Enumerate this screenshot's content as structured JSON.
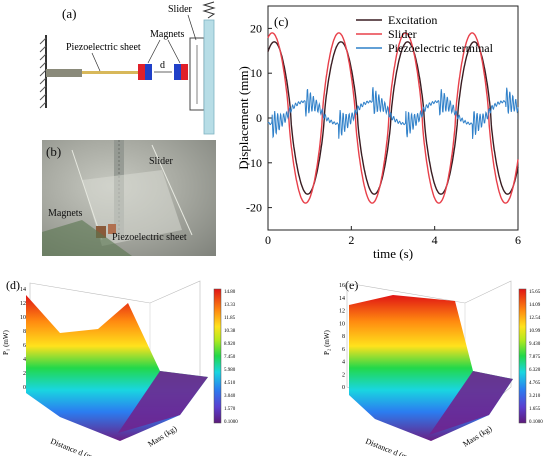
{
  "panel_a": {
    "tag": "(a)",
    "piezo_label": "Piezoelectric sheet",
    "magnets_label": "Magnets",
    "slider_label": "Slider",
    "gap_label": "d"
  },
  "panel_b": {
    "tag": "(b)",
    "slider_label": "Slider",
    "magnets_label": "Magnets",
    "piezo_label": "Piezoelectric sheet"
  },
  "panel_d": {
    "tag": "(d)",
    "xlabel": "Distance d (mm)",
    "ylabel": "Mass (kg)",
    "zlabel": "P₁ (mW)",
    "z_ticks": [
      "0",
      "2",
      "4",
      "6",
      "8",
      "10",
      "12",
      "14"
    ],
    "colorbar_ticks": [
      "14.80",
      "13.33",
      "11.85",
      "10.38",
      "8.920",
      "7.450",
      "5.980",
      "4.510",
      "3.040",
      "1.570",
      "0.1000"
    ]
  },
  "panel_e": {
    "tag": "(e)",
    "xlabel": "Distance d (mm)",
    "ylabel": "Mass (kg)",
    "zlabel": "P₂ (mW)",
    "z_ticks": [
      "0",
      "2",
      "4",
      "6",
      "8",
      "10",
      "12",
      "14",
      "16"
    ],
    "colorbar_ticks": [
      "15.65",
      "14.09",
      "12.54",
      "10.99",
      "9.430",
      "7.875",
      "6.320",
      "4.765",
      "3.210",
      "1.655",
      "0.1000"
    ]
  },
  "chart_data": [
    {
      "type": "line",
      "panel": "(c)",
      "title": "",
      "xlabel": "time (s)",
      "ylabel": "Displacement (mm)",
      "xlim": [
        0,
        6
      ],
      "ylim": [
        -25,
        25
      ],
      "x_ticks": [
        0,
        2,
        4,
        6
      ],
      "y_ticks": [
        -20,
        -10,
        0,
        10,
        20
      ],
      "legend_position": "top-right",
      "series": [
        {
          "name": "Excitation",
          "color": "#3a1d22",
          "amplitude": 17,
          "period": 1.6,
          "phase_shift": 0.15
        },
        {
          "name": "Slider",
          "color": "#e8404a",
          "amplitude": 19,
          "period": 1.6,
          "phase_shift": 0.1
        },
        {
          "name": "Piezoelectric terminal",
          "color": "#2f80c9",
          "amplitude": 5,
          "period": 1.6
        }
      ]
    }
  ]
}
